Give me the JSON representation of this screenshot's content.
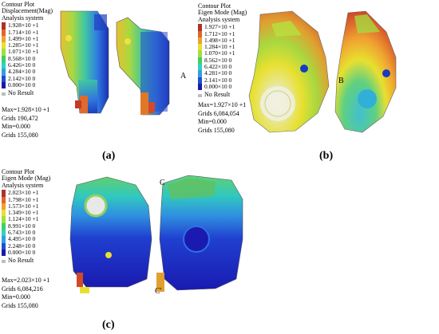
{
  "panels": {
    "a": {
      "label": "(a)",
      "legend_title": [
        "Contour Plot",
        "Displacement(Mag)",
        "Analysis system"
      ],
      "scale": [
        "1.928×10 +1",
        "1.714×10 +1",
        "1.499×10 +1",
        "1.285×10 +1",
        "1.071×10 +1",
        "8.568×10 0",
        "6.426×10 0",
        "4.284×10 0",
        "2.142×10 0",
        "0.000×10 0"
      ],
      "no_result": "No Result",
      "max": "Max=1.928×10 +1",
      "grids_max": "Grids 190,472",
      "min": "Min=0.000",
      "grids_min": "Grids 155,080",
      "marker": "A"
    },
    "b": {
      "label": "(b)",
      "legend_title": [
        "Contour Plot",
        "Eigen Mode (Mag)",
        "Analysis system"
      ],
      "scale": [
        "1.927×10 +1",
        "1.712×10 +1",
        "1.498×10 +1",
        "1.284×10 +1",
        "1.070×10 +1",
        "8.562×10 0",
        "6.422×10 0",
        "4.281×10 0",
        "2.141×10 0",
        "0.000×10 0"
      ],
      "no_result": "No Result",
      "max": "Max=1.927×10 +1",
      "grids_max": "Grids 6,084,054",
      "min": "Min=0.000",
      "grids_min": "Grids 155,080",
      "marker": "B"
    },
    "c": {
      "label": "(c)",
      "legend_title": [
        "Contour Plot",
        "Eigen Mode (Mag)",
        "Analysis system"
      ],
      "scale": [
        "2.023×10 +1",
        "1.798×10 +1",
        "1.573×10 +1",
        "1.349×10 +1",
        "1.124×10 +1",
        "8.991×10 0",
        "6.743×10 0",
        "4.495×10 0",
        "2.248×10 0",
        "0.000×10 0"
      ],
      "no_result": "No Result",
      "max": "Max=2.023×10 +1",
      "grids_max": "Grids 6,084,216",
      "min": "Min=0.000",
      "grids_min": "Grids 155,080",
      "marker_top": "C",
      "marker_bottom": "C'"
    }
  },
  "colors": [
    "#b0302a",
    "#e0652a",
    "#f0a030",
    "#e8e030",
    "#a0e040",
    "#40d060",
    "#30d0c0",
    "#30a0e0",
    "#2050d0",
    "#1a1aa8"
  ]
}
